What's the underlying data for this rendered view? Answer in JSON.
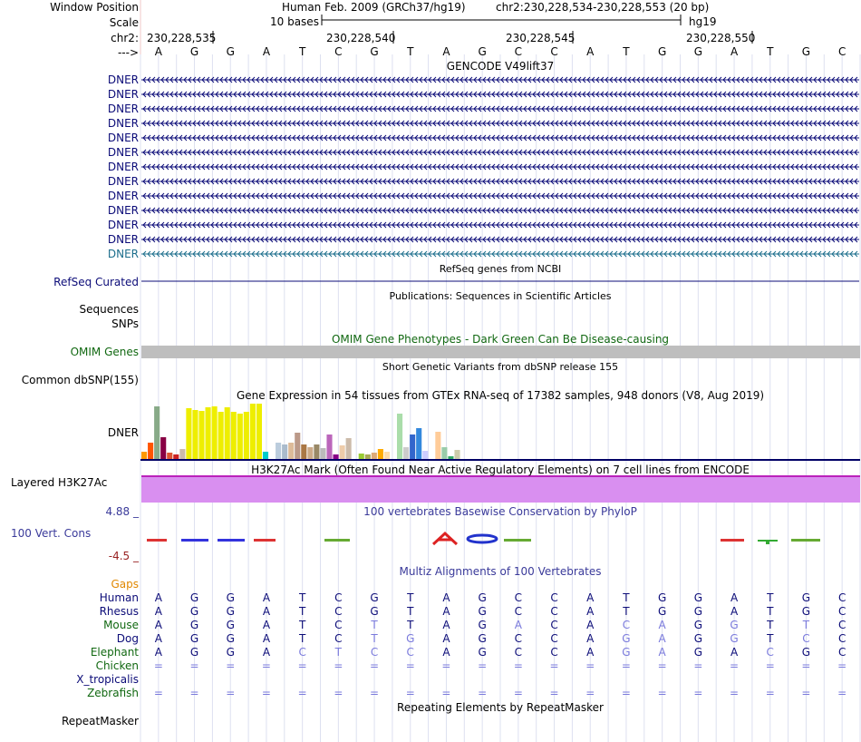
{
  "header": {
    "window_position_label": "Window Position",
    "assembly": "Human Feb. 2009 (GRCh37/hg19)",
    "position": "chr2:230,228,534-230,228,553 (20 bp)",
    "scale_label": "Scale",
    "scale_text": "10 bases",
    "genome": "hg19",
    "chrom_label": "chr2:",
    "ticks": [
      "230,228,535",
      "230,228,540",
      "230,228,545",
      "230,228,550"
    ],
    "strand_label": "--->"
  },
  "sequence": [
    "A",
    "G",
    "G",
    "A",
    "T",
    "C",
    "G",
    "T",
    "A",
    "G",
    "C",
    "C",
    "A",
    "T",
    "G",
    "G",
    "A",
    "T",
    "G",
    "C"
  ],
  "gencode": {
    "title": "GENCODE V49lift37",
    "transcripts": [
      "DNER",
      "DNER",
      "DNER",
      "DNER",
      "DNER",
      "DNER",
      "DNER",
      "DNER",
      "DNER",
      "DNER",
      "DNER",
      "DNER",
      "DNER"
    ],
    "colors": [
      "#0c0c78",
      "#0c0c78",
      "#0c0c78",
      "#0c0c78",
      "#0c0c78",
      "#0c0c78",
      "#0c0c78",
      "#0c0c78",
      "#0c0c78",
      "#0c0c78",
      "#0c0c78",
      "#0c0c78",
      "#1c6e8c"
    ]
  },
  "refseq": {
    "title": "RefSeq genes from NCBI",
    "label": "RefSeq Curated",
    "color": "#0c0c78"
  },
  "publications": {
    "title": "Publications: Sequences in Scientific Articles",
    "label_seq": "Sequences",
    "label_snps": "SNPs"
  },
  "omim": {
    "title": "OMIM Gene Phenotypes - Dark Green Can Be Disease-causing",
    "label": "OMIM Genes",
    "color": "#116811",
    "bar_color": "#bebebe"
  },
  "dbsnp": {
    "title": "Short Genetic Variants from dbSNP release 155",
    "label": "Common dbSNP(155)"
  },
  "gtex": {
    "title": "Gene Expression in 54 tissues from GTEx RNA-seq of 17382 samples, 948 donors (V8, Aug 2019)",
    "label": "DNER",
    "bars": [
      {
        "v": 8,
        "c": "#ff9900"
      },
      {
        "v": 18,
        "c": "#ff5500"
      },
      {
        "v": 58,
        "c": "#88aa88"
      },
      {
        "v": 24,
        "c": "#880044"
      },
      {
        "v": 7,
        "c": "#dd5533"
      },
      {
        "v": 5,
        "c": "#cc2222"
      },
      {
        "v": 11,
        "c": "#ccbbaa"
      },
      {
        "v": 56,
        "c": "#eeee00"
      },
      {
        "v": 54,
        "c": "#eeee00"
      },
      {
        "v": 53,
        "c": "#eeee00"
      },
      {
        "v": 57,
        "c": "#eeee00"
      },
      {
        "v": 58,
        "c": "#eeee00"
      },
      {
        "v": 52,
        "c": "#eeee00"
      },
      {
        "v": 57,
        "c": "#eeee00"
      },
      {
        "v": 52,
        "c": "#eeee00"
      },
      {
        "v": 50,
        "c": "#eeee00"
      },
      {
        "v": 52,
        "c": "#eeee00"
      },
      {
        "v": 61,
        "c": "#eeee00"
      },
      {
        "v": 61,
        "c": "#eeee00"
      },
      {
        "v": 8,
        "c": "#00cccc"
      },
      {
        "v": 0,
        "c": "#ffffff"
      },
      {
        "v": 18,
        "c": "#bbccdd"
      },
      {
        "v": 16,
        "c": "#aabbcc"
      },
      {
        "v": 18,
        "c": "#ddbb99"
      },
      {
        "v": 29,
        "c": "#bb9988"
      },
      {
        "v": 16,
        "c": "#aa7744"
      },
      {
        "v": 13,
        "c": "#ccaa88"
      },
      {
        "v": 16,
        "c": "#998866"
      },
      {
        "v": 12,
        "c": "#bbbbbb"
      },
      {
        "v": 27,
        "c": "#bb66bb"
      },
      {
        "v": 5,
        "c": "#880088"
      },
      {
        "v": 15,
        "c": "#eeccaa"
      },
      {
        "v": 23,
        "c": "#ccbbaa"
      },
      {
        "v": 0,
        "c": "#ffffff"
      },
      {
        "v": 6,
        "c": "#99cc33"
      },
      {
        "v": 5,
        "c": "#aaaa55"
      },
      {
        "v": 7,
        "c": "#ddaa77"
      },
      {
        "v": 11,
        "c": "#ffaa00"
      },
      {
        "v": 8,
        "c": "#ffddaa"
      },
      {
        "v": 0,
        "c": "#ffffff"
      },
      {
        "v": 50,
        "c": "#aaddaa"
      },
      {
        "v": 13,
        "c": "#cccccc"
      },
      {
        "v": 27,
        "c": "#3366cc"
      },
      {
        "v": 34,
        "c": "#3388dd"
      },
      {
        "v": 9,
        "c": "#ccccff"
      },
      {
        "v": 0,
        "c": "#ffffff"
      },
      {
        "v": 30,
        "c": "#ffcc99"
      },
      {
        "v": 13,
        "c": "#99ccaa"
      },
      {
        "v": 3,
        "c": "#33aa66"
      },
      {
        "v": 10,
        "c": "#ccccaa"
      },
      {
        "v": 0,
        "c": "#ffffff"
      }
    ]
  },
  "h3k27ac": {
    "title": "H3K27Ac Mark (Often Found Near Active Regulatory Elements) on 7 cell lines from ENCODE",
    "label": "Layered H3K27Ac",
    "fill": "#d98ff0",
    "line": "#bb22bb"
  },
  "phylop": {
    "title": "100 vertebrates Basewise Conservation by PhyloP",
    "max": "4.88 _",
    "min": "-4.5 _",
    "label": "100 Vert. Cons",
    "title_color": "#3a3a9a",
    "label_color": "#3a3a9a",
    "max_color": "#3a3a9a",
    "min_color": "#992222"
  },
  "multiz": {
    "title": "Multiz Alignments of 100 Vertebrates",
    "gaps_label": "Gaps",
    "gaps_color": "#e08800",
    "species": [
      {
        "name": "Human",
        "color": "#0c0c78",
        "bases": [
          "A",
          "G",
          "G",
          "A",
          "T",
          "C",
          "G",
          "T",
          "A",
          "G",
          "C",
          "C",
          "A",
          "T",
          "G",
          "G",
          "A",
          "T",
          "G",
          "C"
        ],
        "diff": [
          0,
          0,
          0,
          0,
          0,
          0,
          0,
          0,
          0,
          0,
          0,
          0,
          0,
          0,
          0,
          0,
          0,
          0,
          0,
          0
        ]
      },
      {
        "name": "Rhesus",
        "color": "#0c0c78",
        "bases": [
          "A",
          "G",
          "G",
          "A",
          "T",
          "C",
          "G",
          "T",
          "A",
          "G",
          "C",
          "C",
          "A",
          "T",
          "G",
          "G",
          "A",
          "T",
          "G",
          "C"
        ],
        "diff": [
          0,
          0,
          0,
          0,
          0,
          0,
          0,
          0,
          0,
          0,
          0,
          0,
          0,
          0,
          0,
          0,
          0,
          0,
          0,
          0
        ]
      },
      {
        "name": "Mouse",
        "color": "#116811",
        "bases": [
          "A",
          "G",
          "G",
          "A",
          "T",
          "C",
          "T",
          "T",
          "A",
          "G",
          "A",
          "C",
          "A",
          "C",
          "A",
          "G",
          "G",
          "T",
          "T",
          "C"
        ],
        "diff": [
          0,
          0,
          0,
          0,
          0,
          0,
          1,
          0,
          0,
          0,
          1,
          0,
          0,
          1,
          1,
          0,
          1,
          0,
          1,
          0
        ]
      },
      {
        "name": "Dog",
        "color": "#0c0c78",
        "bases": [
          "A",
          "G",
          "G",
          "A",
          "T",
          "C",
          "T",
          "G",
          "A",
          "G",
          "C",
          "C",
          "A",
          "G",
          "A",
          "G",
          "G",
          "T",
          "C",
          "C"
        ],
        "diff": [
          0,
          0,
          0,
          0,
          0,
          0,
          1,
          1,
          0,
          0,
          0,
          0,
          0,
          1,
          1,
          0,
          1,
          0,
          1,
          0
        ]
      },
      {
        "name": "Elephant",
        "color": "#116811",
        "bases": [
          "A",
          "G",
          "G",
          "A",
          "C",
          "T",
          "C",
          "C",
          "A",
          "G",
          "C",
          "C",
          "A",
          "G",
          "A",
          "G",
          "A",
          "C",
          "G",
          "C"
        ],
        "diff": [
          0,
          0,
          0,
          0,
          1,
          1,
          1,
          1,
          0,
          0,
          0,
          0,
          0,
          1,
          1,
          0,
          0,
          1,
          0,
          0
        ]
      },
      {
        "name": "Chicken",
        "color": "#116811",
        "bases": [
          "=",
          "=",
          "=",
          "=",
          "=",
          "=",
          "=",
          "=",
          "=",
          "=",
          "=",
          "=",
          "=",
          "=",
          "=",
          "=",
          "=",
          "=",
          "=",
          "="
        ],
        "diff": [
          1,
          1,
          1,
          1,
          1,
          1,
          1,
          1,
          1,
          1,
          1,
          1,
          1,
          1,
          1,
          1,
          1,
          1,
          1,
          1
        ]
      },
      {
        "name": "X_tropicalis",
        "color": "#0c0c78",
        "bases": [
          "",
          "",
          "",
          "",
          "",
          "",
          "",
          "",
          "",
          "",
          "",
          "",
          "",
          "",
          "",
          "",
          "",
          "",
          "",
          ""
        ],
        "diff": [
          0,
          0,
          0,
          0,
          0,
          0,
          0,
          0,
          0,
          0,
          0,
          0,
          0,
          0,
          0,
          0,
          0,
          0,
          0,
          0
        ]
      },
      {
        "name": "Zebrafish",
        "color": "#116811",
        "bases": [
          "=",
          "=",
          "=",
          "=",
          "=",
          "=",
          "=",
          "=",
          "=",
          "=",
          "=",
          "=",
          "=",
          "=",
          "=",
          "=",
          "=",
          "=",
          "=",
          "="
        ],
        "diff": [
          1,
          1,
          1,
          1,
          1,
          1,
          1,
          1,
          1,
          1,
          1,
          1,
          1,
          1,
          1,
          1,
          1,
          1,
          1,
          1
        ]
      }
    ]
  },
  "repeatmasker": {
    "title": "Repeating Elements by RepeatMasker",
    "label": "RepeatMasker"
  }
}
